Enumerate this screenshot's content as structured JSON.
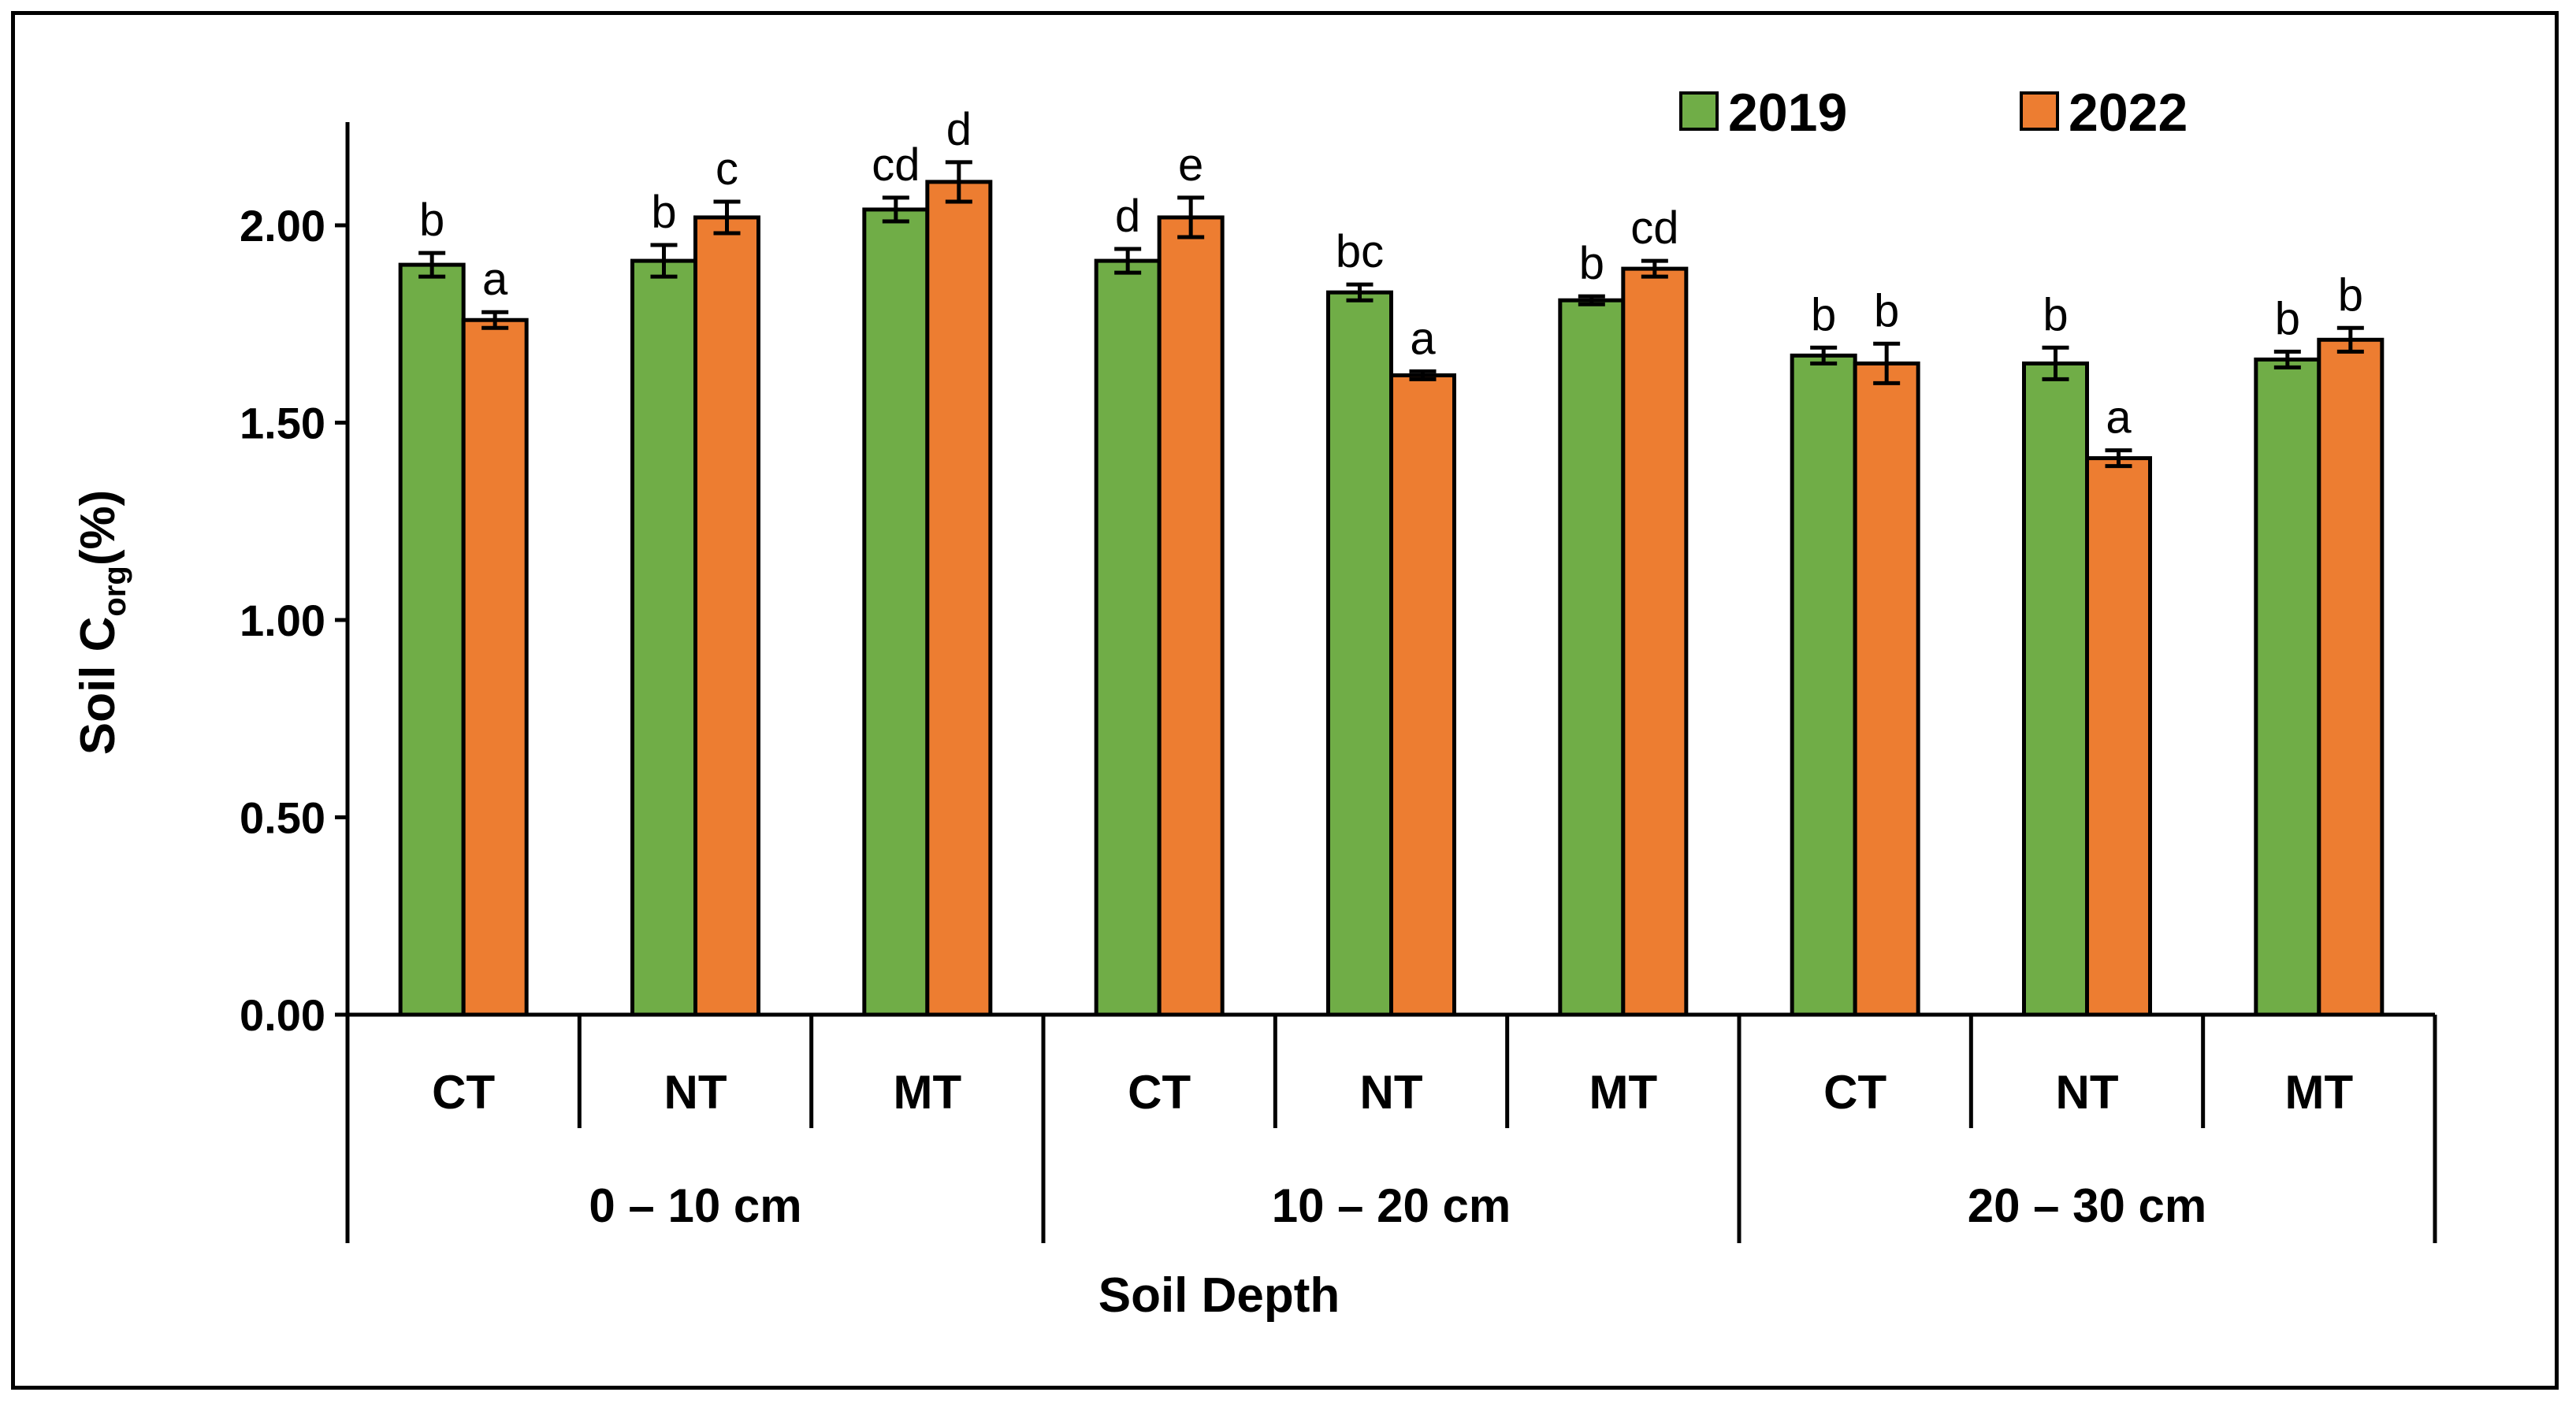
{
  "chart_data": {
    "type": "bar",
    "ylabel_main": "Soil C",
    "ylabel_sub": "org",
    "ylabel_unit": "(%)",
    "xlabel": "Soil Depth",
    "ylim": [
      0,
      2.25
    ],
    "yticks": [
      "0.00",
      "0.50",
      "1.00",
      "1.50",
      "2.00"
    ],
    "ytick_values": [
      0,
      0.5,
      1.0,
      1.5,
      2.0
    ],
    "groups": [
      "0 – 10 cm",
      "10 – 20 cm",
      "20 – 30 cm"
    ],
    "categories": [
      "CT",
      "NT",
      "MT",
      "CT",
      "NT",
      "MT",
      "CT",
      "NT",
      "MT"
    ],
    "series": [
      {
        "name": "2019",
        "color": "#70AD47",
        "values": [
          1.9,
          1.91,
          2.04,
          1.91,
          1.83,
          1.81,
          1.67,
          1.65,
          1.66
        ],
        "errors": [
          0.03,
          0.04,
          0.03,
          0.03,
          0.02,
          0.01,
          0.02,
          0.04,
          0.02
        ],
        "labels": [
          "b",
          "b",
          "cd",
          "d",
          "bc",
          "b",
          "b",
          "b",
          "b"
        ]
      },
      {
        "name": "2022",
        "color": "#ED7D31",
        "values": [
          1.76,
          2.02,
          2.11,
          2.02,
          1.62,
          1.89,
          1.65,
          1.41,
          1.71
        ],
        "errors": [
          0.02,
          0.04,
          0.05,
          0.05,
          0.01,
          0.02,
          0.05,
          0.02,
          0.03
        ],
        "labels": [
          "a",
          "c",
          "d",
          "e",
          "a",
          "cd",
          "b",
          "a",
          "b"
        ]
      }
    ],
    "legend_position": "top-right",
    "grid": false
  }
}
